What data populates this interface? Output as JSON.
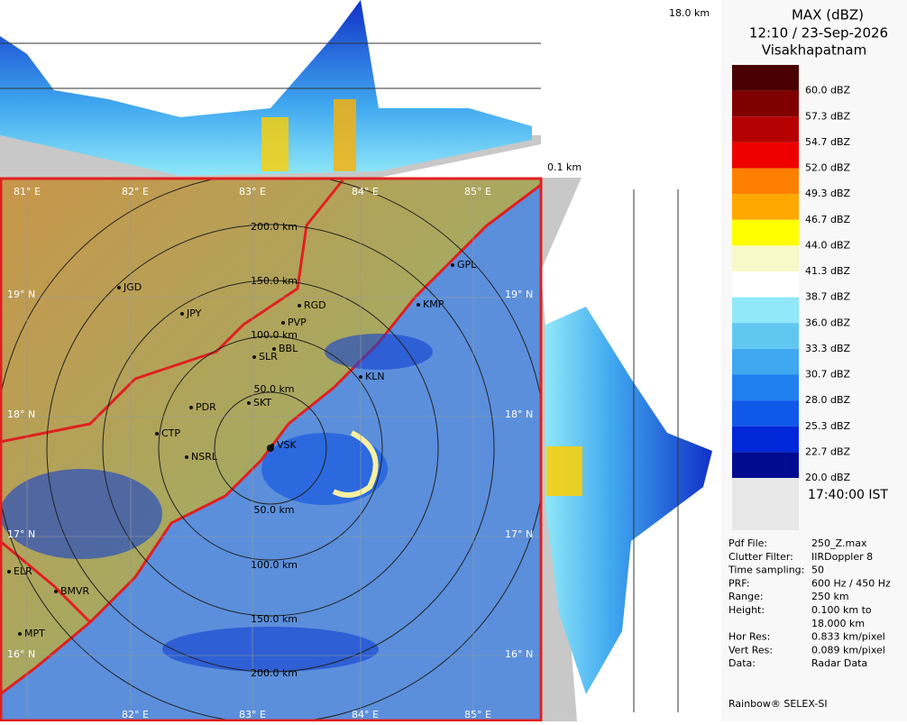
{
  "header": {
    "title": "MAX (dBZ)",
    "datetime": "12:10 / 23-Sep-2026",
    "station": "Visakhapatnam"
  },
  "top_panel": {
    "height_label": "18.0 km"
  },
  "side_panel": {
    "height_label": "0.1 km"
  },
  "legend": [
    {
      "label": "60.0 dBZ",
      "color": "#4a0000"
    },
    {
      "label": "57.3 dBZ",
      "color": "#800000"
    },
    {
      "label": "54.7 dBZ",
      "color": "#b40000"
    },
    {
      "label": "52.0 dBZ",
      "color": "#ee0000"
    },
    {
      "label": "49.3 dBZ",
      "color": "#ff8000"
    },
    {
      "label": "46.7 dBZ",
      "color": "#ffa800"
    },
    {
      "label": "44.0 dBZ",
      "color": "#ffff00"
    },
    {
      "label": "41.3 dBZ",
      "color": "#f8f8c8"
    },
    {
      "label": "38.7 dBZ",
      "color": "#ffffff"
    },
    {
      "label": "36.0 dBZ",
      "color": "#90e8f8"
    },
    {
      "label": "33.3 dBZ",
      "color": "#60c8f0"
    },
    {
      "label": "30.7 dBZ",
      "color": "#40a8f0"
    },
    {
      "label": "28.0 dBZ",
      "color": "#2080f0"
    },
    {
      "label": "25.3 dBZ",
      "color": "#1058e8"
    },
    {
      "label": "22.7 dBZ",
      "color": "#0028d8"
    },
    {
      "label": "20.0 dBZ",
      "color": "#000c90"
    }
  ],
  "time": "17:40:00 IST",
  "info": [
    [
      "Pdf File:",
      "250_Z.max"
    ],
    [
      "Clutter Filter:",
      "IIRDoppler 8"
    ],
    [
      "Time sampling:",
      "50"
    ],
    [
      "PRF:",
      "600 Hz / 450 Hz"
    ],
    [
      "Range:",
      "250 km"
    ],
    [
      "Height:",
      "0.100 km to"
    ],
    [
      "",
      "18.000 km"
    ],
    [
      "Hor Res:",
      "0.833 km/pixel"
    ],
    [
      "Vert Res:",
      "0.089 km/pixel"
    ],
    [
      "Data:",
      "Radar Data"
    ]
  ],
  "footer": "Rainbow® SELEX-SI",
  "map": {
    "lon_labels": [
      "81° E",
      "82° E",
      "83° E",
      "84° E",
      "85° E"
    ],
    "lon_labels_bottom": [
      "82° E",
      "83° E",
      "84° E",
      "85° E"
    ],
    "lat_labels": [
      "19° N",
      "18° N",
      "17° N",
      "16° N"
    ],
    "range_labels_north": [
      "200.0 km",
      "150.0 km",
      "100.0 km",
      "50.0 km"
    ],
    "range_labels_south": [
      "50.0 km",
      "100.0 km",
      "150.0 km",
      "200.0 km"
    ],
    "places": [
      "JGD",
      "JPY",
      "RGD",
      "PVP",
      "BBL",
      "SLR",
      "PDR",
      "SKT",
      "CTP",
      "NSRL",
      "VSK",
      "GPL",
      "KMP",
      "KLN",
      "ELR",
      "BMVR",
      "MPT"
    ]
  }
}
